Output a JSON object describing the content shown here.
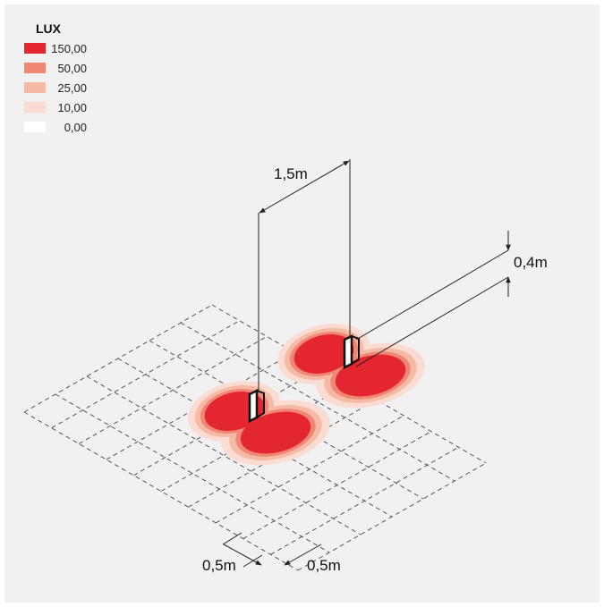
{
  "legend": {
    "title": "LUX",
    "items": [
      {
        "label": "150,00",
        "color": "#e3262f"
      },
      {
        "label": "50,00",
        "color": "#ee8773"
      },
      {
        "label": "25,00",
        "color": "#f5b9a4"
      },
      {
        "label": "10,00",
        "color": "#fadcd2"
      },
      {
        "label": "0,00",
        "color": "#ffffff"
      }
    ]
  },
  "dimensions": {
    "spacing": "1,5m",
    "height": "0,4m",
    "cell_a": "0,5m",
    "cell_b": "0,5m"
  },
  "colors": {
    "zone_150": "#e3262f",
    "zone_50": "#ee8773",
    "zone_25": "#f5b9a4",
    "zone_10": "#fadcd2"
  }
}
